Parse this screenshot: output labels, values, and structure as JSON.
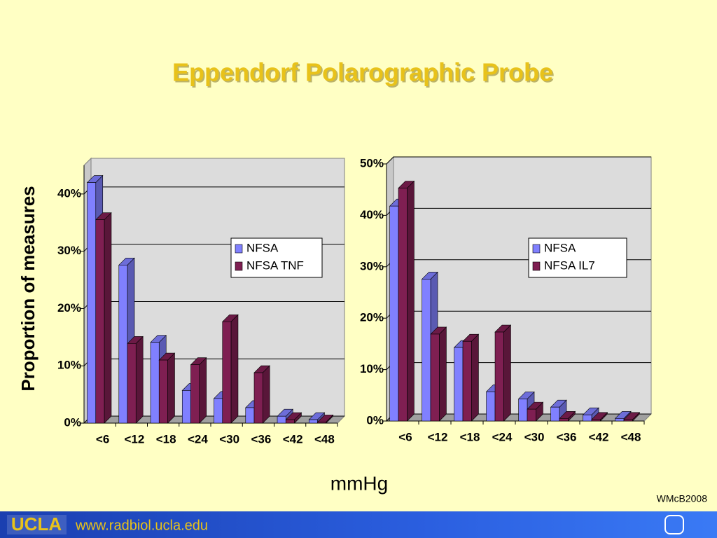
{
  "title": "Eppendorf Polarographic Probe",
  "xlabel": "mmHg",
  "credit": "WMcB2008",
  "footer": {
    "logo": "UCLA",
    "url": "www.radbiol.ucla.edu"
  },
  "chart_data": [
    {
      "type": "bar3d",
      "ylabel": "Proportion of measures",
      "categories": [
        "<6",
        "<12",
        "<18",
        "<24",
        "<30",
        "<36",
        "<42",
        "<48"
      ],
      "series": [
        {
          "name": "NFSA",
          "color": "#8080ff",
          "values": [
            42,
            27.6,
            14.1,
            5.7,
            4.3,
            2.7,
            1.2,
            0.6
          ]
        },
        {
          "name": "NFSA TNF",
          "color": "#7f1f52",
          "values": [
            35.5,
            13.9,
            11,
            10.2,
            17.7,
            8.8,
            0.6,
            0.2
          ]
        }
      ],
      "ylim": [
        0,
        45
      ],
      "yticks": [
        {
          "value": 0,
          "label": "0%"
        },
        {
          "value": 10,
          "label": "10%"
        },
        {
          "value": 20,
          "label": "20%"
        },
        {
          "value": 30,
          "label": "30%"
        },
        {
          "value": 40,
          "label": "40%"
        }
      ],
      "grid": true
    },
    {
      "type": "bar3d",
      "categories": [
        "<6",
        "<12",
        "<18",
        "<24",
        "<30",
        "<36",
        "<42",
        "<48"
      ],
      "series": [
        {
          "name": "NFSA",
          "color": "#8080ff",
          "values": [
            41.8,
            27.6,
            14.3,
            5.7,
            4.3,
            2.7,
            1.2,
            0.5
          ]
        },
        {
          "name": "NFSA IL7",
          "color": "#7f1f52",
          "values": [
            45.3,
            16.9,
            15.5,
            17.3,
            2.3,
            0.5,
            0.3,
            0.3
          ]
        }
      ],
      "ylim": [
        0,
        50
      ],
      "yticks": [
        {
          "value": 0,
          "label": "0%"
        },
        {
          "value": 10,
          "label": "10%"
        },
        {
          "value": 20,
          "label": "20%"
        },
        {
          "value": 30,
          "label": "30%"
        },
        {
          "value": 40,
          "label": "40%"
        },
        {
          "value": 50,
          "label": "50%"
        }
      ],
      "grid": true
    }
  ]
}
